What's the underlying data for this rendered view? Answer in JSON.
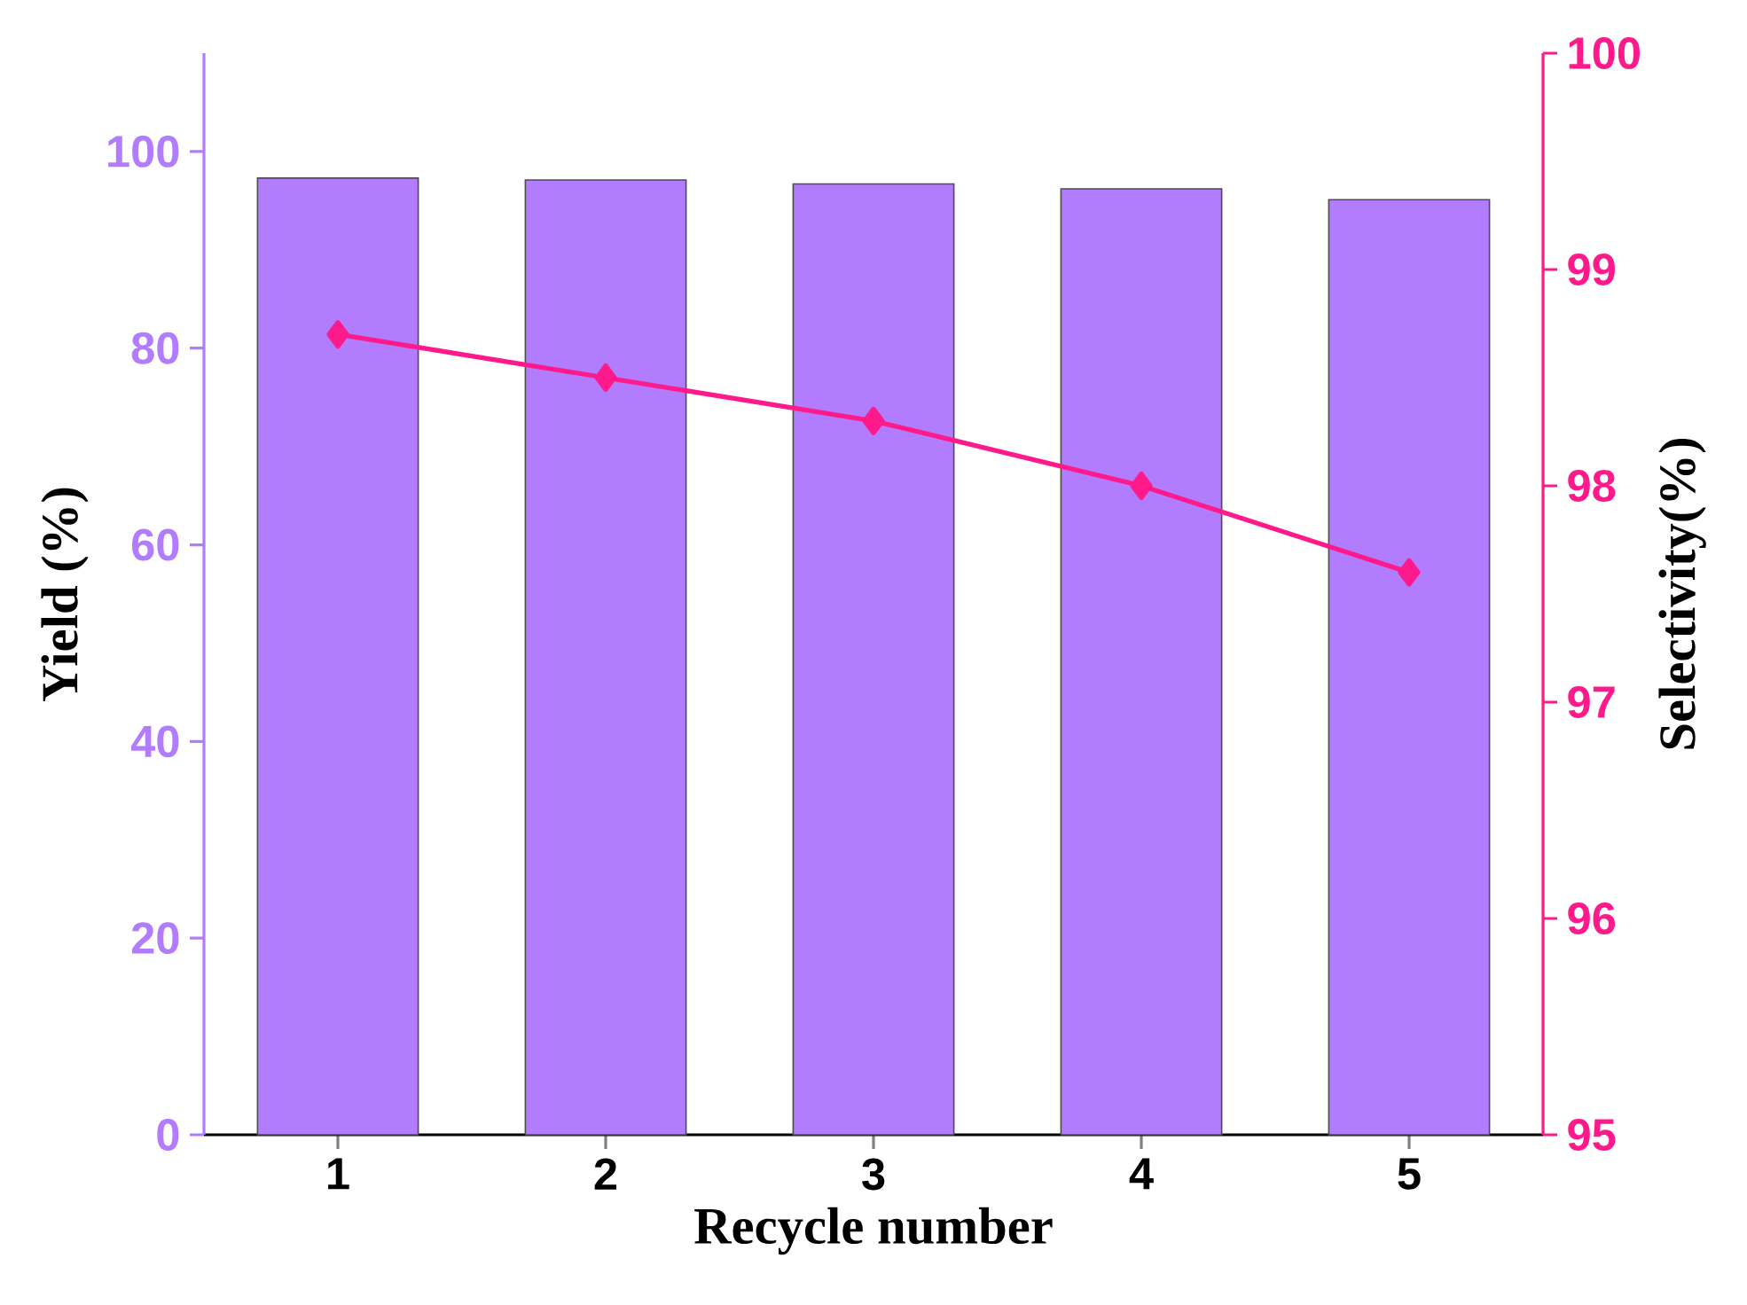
{
  "chart_data": {
    "type": "bar",
    "xlabel": "Recycle number",
    "ylabel": "Yield (%)",
    "y2label": "Selectivity(%)",
    "categories": [
      "1",
      "2",
      "3",
      "4",
      "5"
    ],
    "series": [
      {
        "color": "#b27cff",
        "values": [
          97.3,
          97.1,
          96.7,
          96.2,
          95.1
        ]
      },
      {
        "type": "line",
        "axis": "y2",
        "color": "#ff1a8c",
        "marker": "diamond",
        "line_style": "solid",
        "values": [
          98.7,
          98.5,
          98.3,
          98.0,
          97.6
        ]
      }
    ],
    "ylim": [
      0,
      110
    ],
    "yticks": [
      0,
      20,
      40,
      60,
      80,
      100
    ],
    "y2lim": [
      95,
      100
    ],
    "y2ticks": [
      95,
      96,
      97,
      98,
      99,
      100
    ]
  }
}
